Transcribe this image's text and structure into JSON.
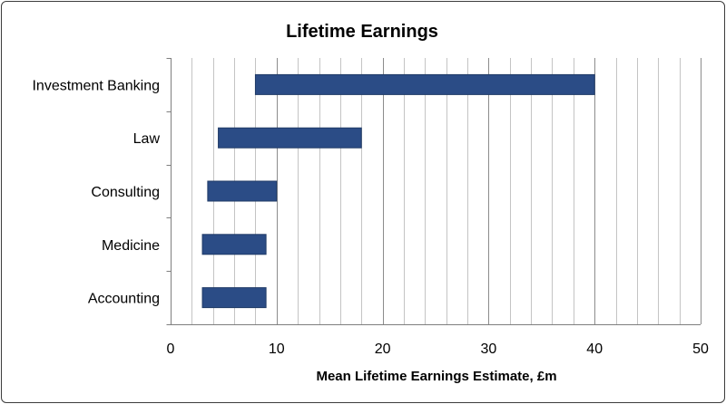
{
  "chart_data": {
    "type": "bar",
    "orientation": "horizontal",
    "variant": "floating-range",
    "title": "Lifetime Earnings",
    "xlabel": "Mean Lifetime Earnings Estimate, £m",
    "ylabel": "",
    "xlim": [
      0,
      50
    ],
    "major_ticks": [
      0,
      10,
      20,
      30,
      40,
      50
    ],
    "minor_step": 2,
    "grid": true,
    "legend": "none",
    "categories": [
      "Investment Banking",
      "Law",
      "Consulting",
      "Medicine",
      "Accounting"
    ],
    "ranges": [
      [
        8,
        40
      ],
      [
        4.5,
        18
      ],
      [
        3.5,
        10
      ],
      [
        3,
        9
      ],
      [
        3,
        9
      ]
    ],
    "colors": {
      "bar": "#2b4c86",
      "bar_edge": "#1f3a66"
    }
  }
}
